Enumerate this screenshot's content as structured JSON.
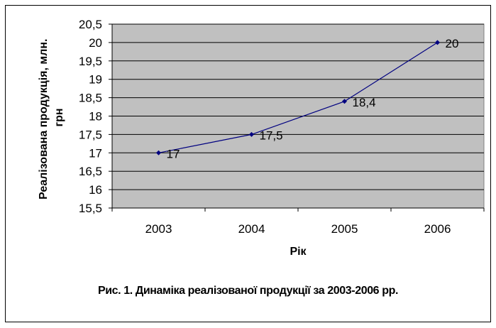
{
  "chart_data": {
    "type": "line",
    "categories": [
      "2003",
      "2004",
      "2005",
      "2006"
    ],
    "series": [
      {
        "values": [
          17,
          17.5,
          18.4,
          20
        ],
        "data_labels": [
          "17",
          "17,5",
          "18,4",
          "20"
        ]
      }
    ],
    "ylim": [
      15.5,
      20.5
    ],
    "yticks": [
      "15,5",
      "16",
      "16,5",
      "17",
      "17,5",
      "18",
      "18,5",
      "19",
      "19,5",
      "20",
      "20,5"
    ],
    "ylabel": "Реалізована продукція, млн. грн",
    "ylabel_lines": [
      "Реалізована продукція, млн.",
      "грн"
    ],
    "xlabel": "Рік",
    "grid": true,
    "plot_background": "#c0c0c0",
    "line_color": "#000080"
  },
  "caption": "Рис. 1. Динаміка реалізованої продукції за 2003-2006 рр."
}
